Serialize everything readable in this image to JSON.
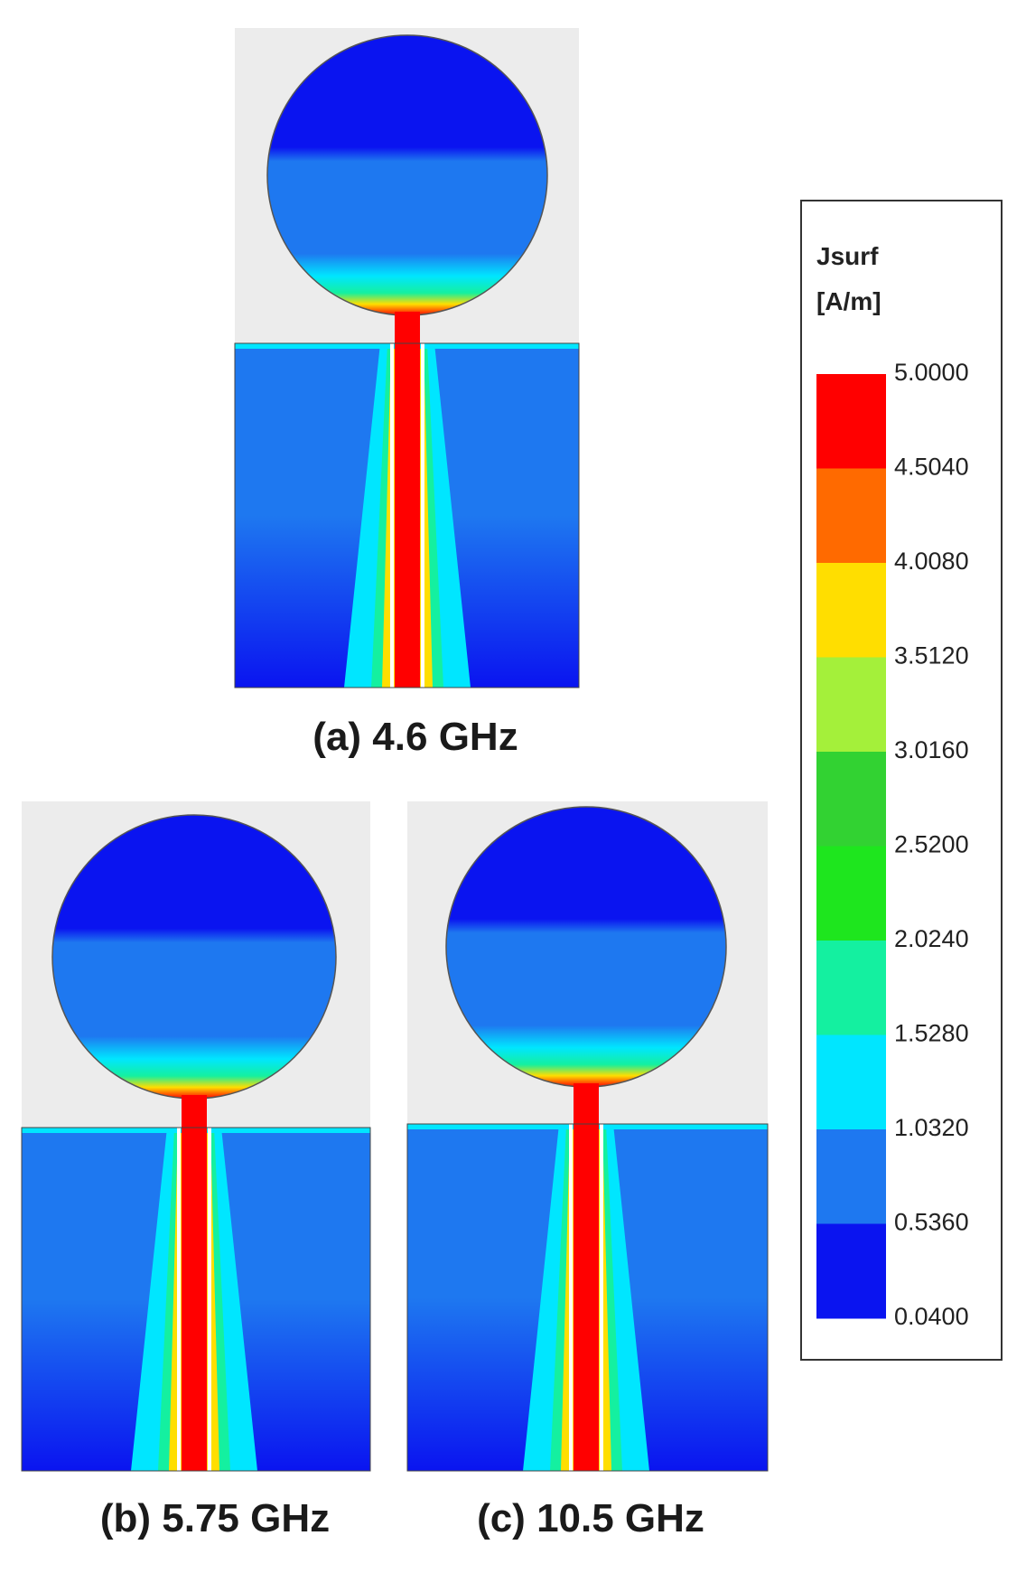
{
  "panels": [
    {
      "caption": "(a) 4.6 GHz"
    },
    {
      "caption": "(b) 5.75 GHz"
    },
    {
      "caption": "(c) 10.5 GHz"
    }
  ],
  "legend": {
    "title": [
      "Jsurf",
      "[A/m]"
    ],
    "levels": [
      {
        "label": "5.0000",
        "color": "#ff0000"
      },
      {
        "label": "4.5040",
        "color": "#ff6a00"
      },
      {
        "label": "4.0080",
        "color": "#ffde00"
      },
      {
        "label": "3.5120",
        "color": "#a4f03a"
      },
      {
        "label": "3.0160",
        "color": "#32d232"
      },
      {
        "label": "2.5200",
        "color": "#1ee61e"
      },
      {
        "label": "2.0240",
        "color": "#14f0a0"
      },
      {
        "label": "1.5280",
        "color": "#00e6ff"
      },
      {
        "label": "1.0320",
        "color": "#1e78f0"
      },
      {
        "label": "0.5360",
        "color": "#0a14f0"
      },
      {
        "label": "0.0400",
        "color": null
      }
    ]
  }
}
